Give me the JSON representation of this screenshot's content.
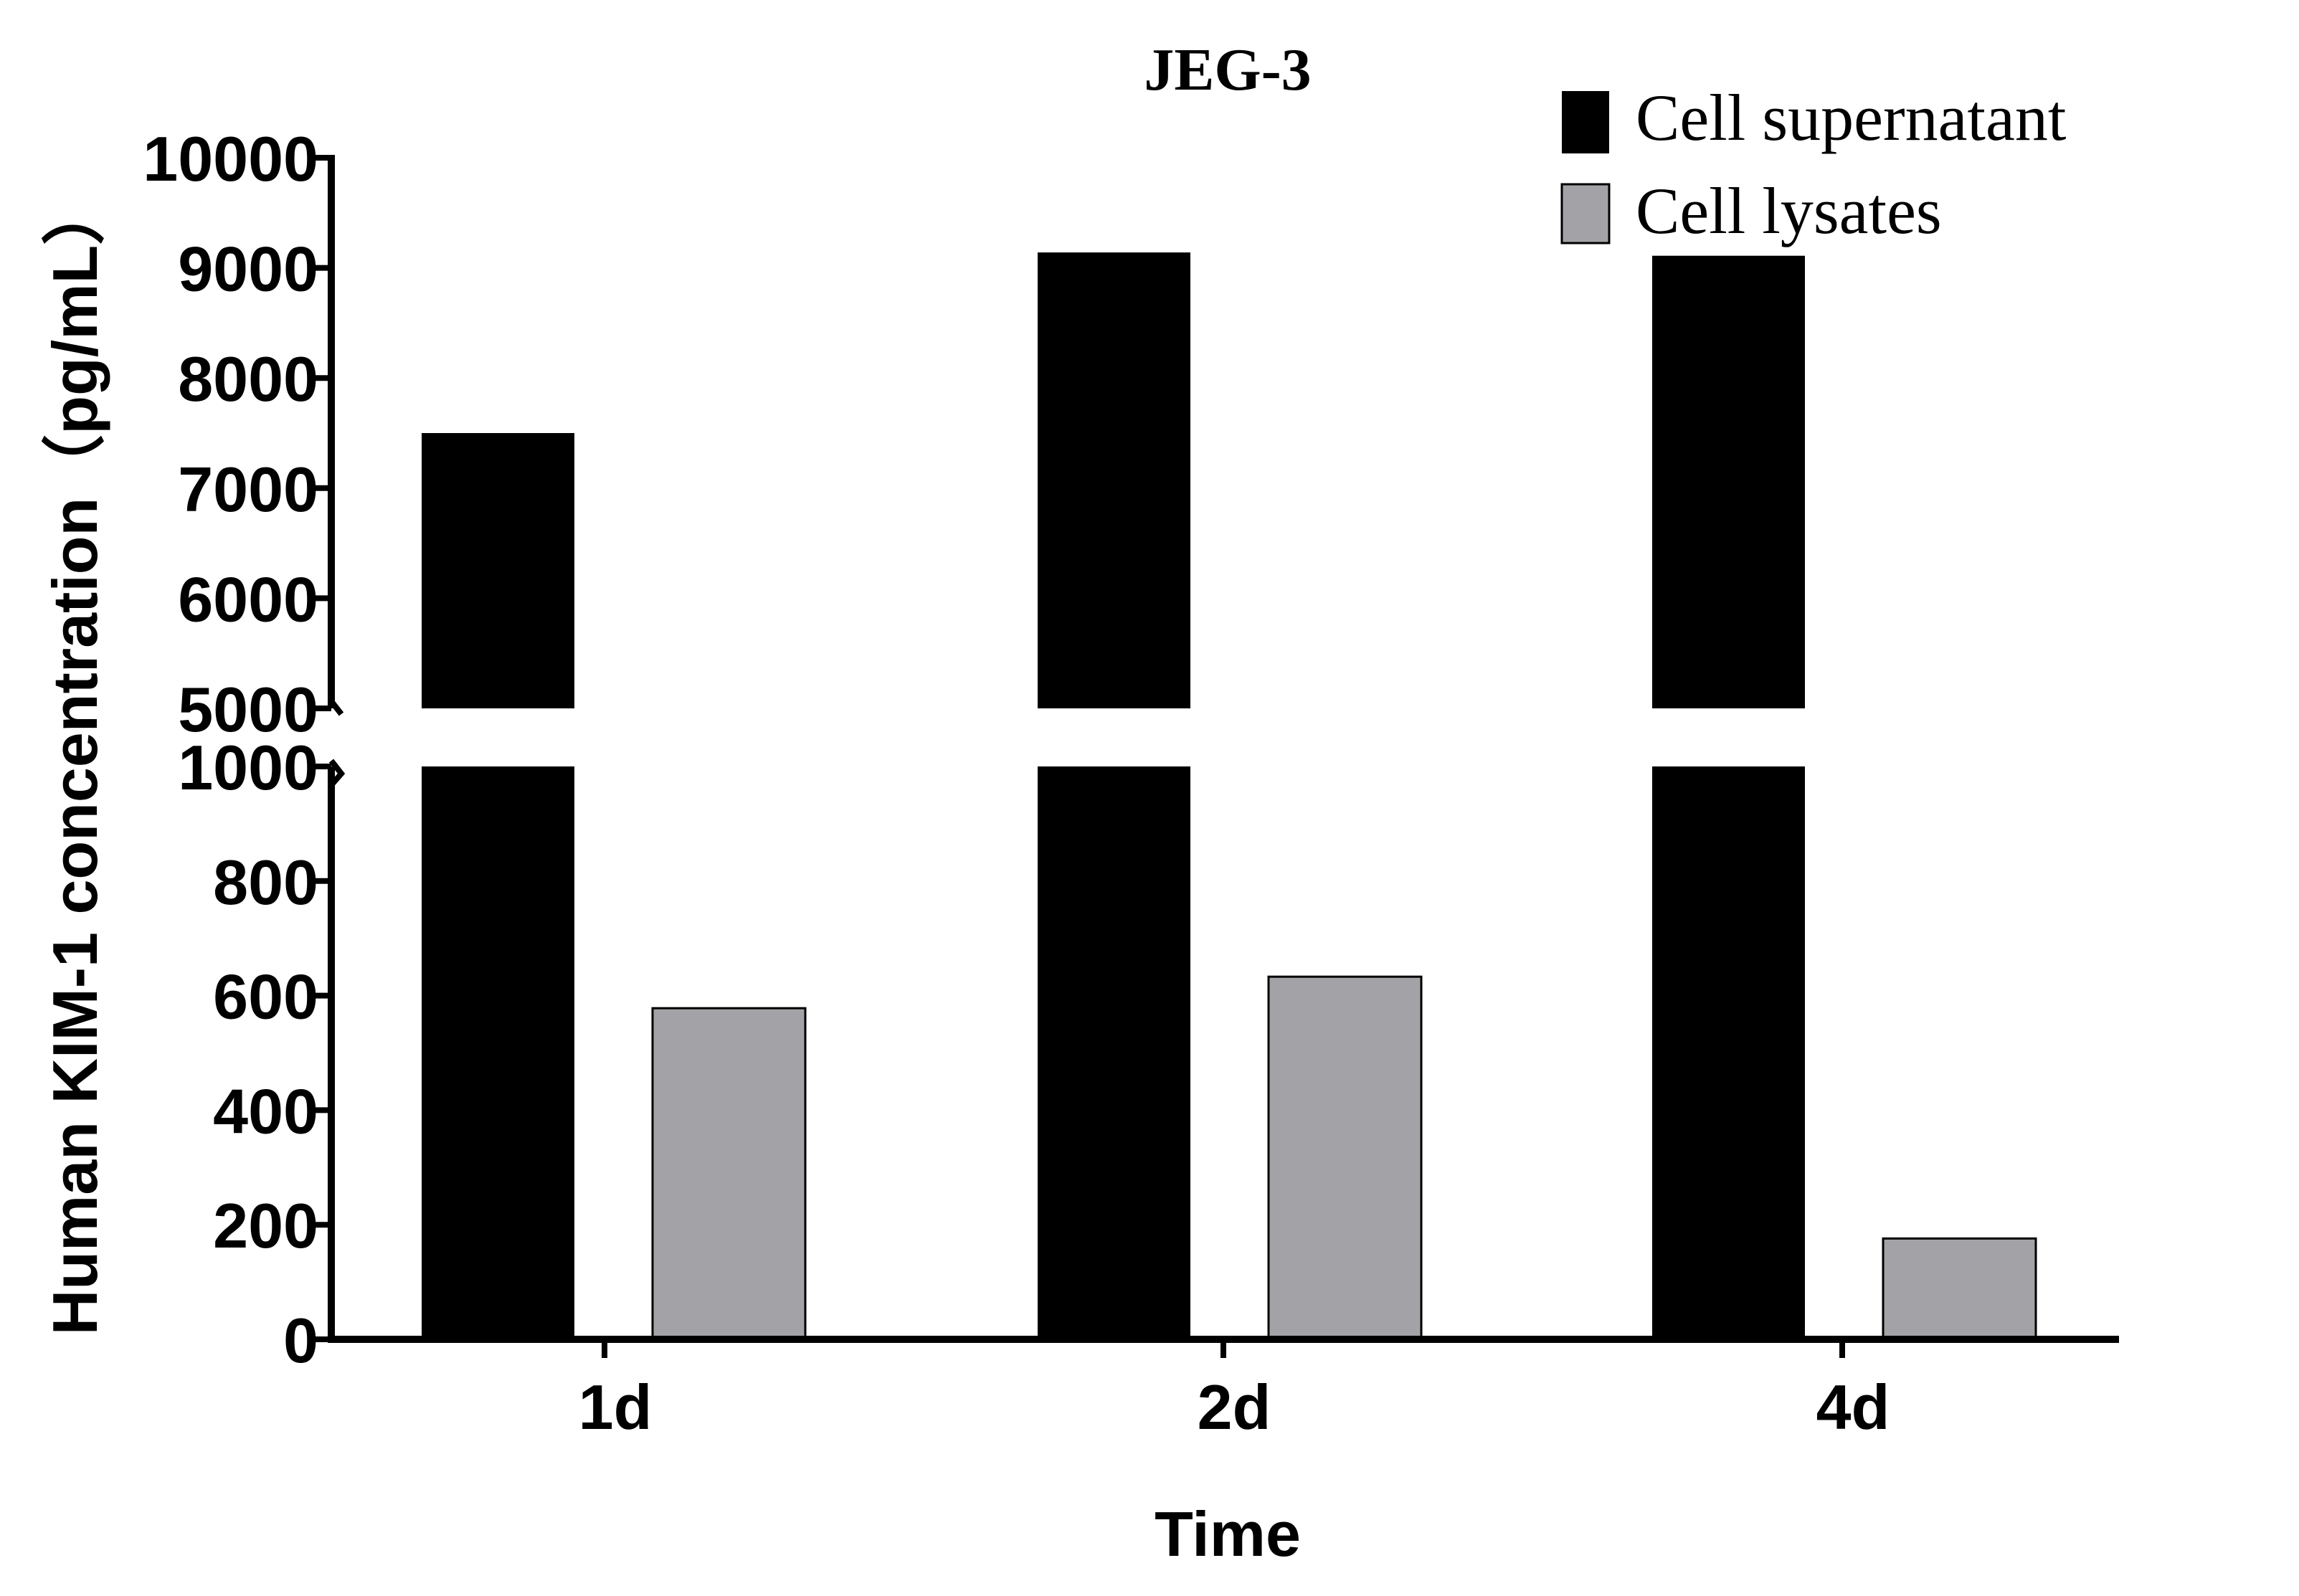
{
  "chart_data": {
    "type": "bar",
    "title": "JEG-3",
    "xlabel": "Time",
    "ylabel": "Human KIM-1 concentration（pg/mL）",
    "categories": [
      "1d",
      "2d",
      "4d"
    ],
    "series": [
      {
        "name": "Cell supernatant",
        "color": "#000000",
        "values": [
          7500,
          9140,
          9110
        ]
      },
      {
        "name": "Cell lysates",
        "color": "#a3a3a7",
        "values": [
          578,
          633,
          176
        ]
      }
    ],
    "y_axis_break": true,
    "y_segments": [
      {
        "range": [
          0,
          1000
        ],
        "ticks": [
          "0",
          "200",
          "400",
          "600",
          "800",
          "1000"
        ]
      },
      {
        "range": [
          5000,
          10000
        ],
        "ticks": [
          "5000",
          "6000",
          "7000",
          "8000",
          "9000",
          "10000"
        ]
      }
    ],
    "legend_position": "top-right",
    "grid": false
  }
}
